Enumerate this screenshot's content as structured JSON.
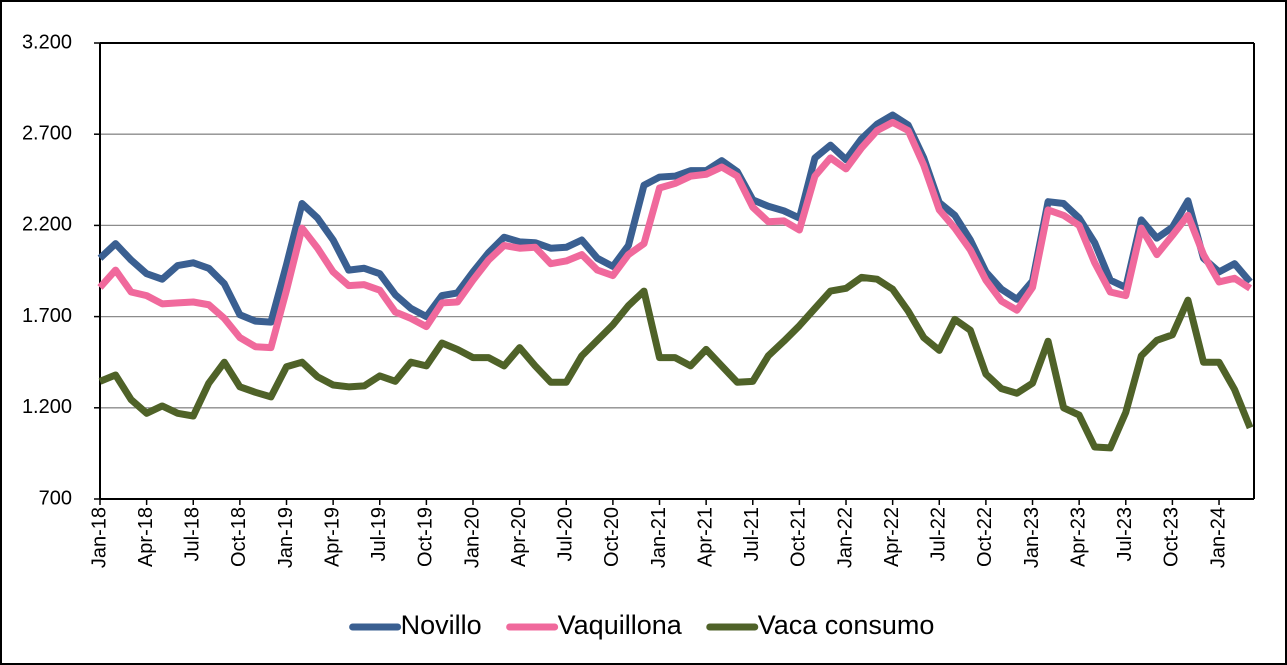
{
  "chart_data": {
    "type": "line",
    "categories": [
      "Jan-18",
      null,
      null,
      "Apr-18",
      null,
      null,
      "Jul-18",
      null,
      null,
      "Oct-18",
      null,
      null,
      "Jan-19",
      null,
      null,
      "Apr-19",
      null,
      null,
      "Jul-19",
      null,
      null,
      "Oct-19",
      null,
      null,
      "Jan-20",
      null,
      null,
      "Apr-20",
      null,
      null,
      "Jul-20",
      null,
      null,
      "Oct-20",
      null,
      null,
      "Jan-21",
      null,
      null,
      "Apr-21",
      null,
      null,
      "Jul-21",
      null,
      null,
      "Oct-21",
      null,
      null,
      "Jan-22",
      null,
      null,
      "Apr-22",
      null,
      null,
      "Jul-22",
      null,
      null,
      "Oct-22",
      null,
      null,
      "Jan-23",
      null,
      null,
      "Apr-23",
      null,
      null,
      "Jul-23",
      null,
      null,
      "Oct-23",
      null,
      null,
      "Jan-24",
      null,
      null
    ],
    "series": [
      {
        "name": "Novillo",
        "color": "#3a5f91",
        "values": [
          2020,
          2100,
          2010,
          1935,
          1905,
          1980,
          1995,
          1965,
          1880,
          1710,
          1675,
          1670,
          1985,
          2320,
          2240,
          2120,
          1955,
          1965,
          1935,
          1820,
          1745,
          1700,
          1815,
          1830,
          1945,
          2050,
          2135,
          2110,
          2105,
          2075,
          2080,
          2120,
          2020,
          1975,
          2090,
          2420,
          2465,
          2470,
          2500,
          2500,
          2555,
          2495,
          2340,
          2305,
          2280,
          2240,
          2570,
          2640,
          2560,
          2675,
          2755,
          2805,
          2750,
          2570,
          2325,
          2255,
          2120,
          1945,
          1850,
          1795,
          1895,
          2330,
          2320,
          2240,
          2105,
          1900,
          1860,
          2230,
          2130,
          2190,
          2335,
          2020,
          1945,
          1990,
          1890
        ]
      },
      {
        "name": "Vaquillona",
        "color": "#f0699c",
        "values": [
          1860,
          1955,
          1835,
          1815,
          1770,
          1775,
          1780,
          1765,
          1690,
          1585,
          1535,
          1530,
          1845,
          2185,
          2075,
          1945,
          1870,
          1875,
          1845,
          1725,
          1690,
          1645,
          1775,
          1780,
          1900,
          2010,
          2090,
          2075,
          2080,
          1990,
          2005,
          2040,
          1955,
          1925,
          2040,
          2100,
          2405,
          2430,
          2470,
          2480,
          2520,
          2470,
          2300,
          2220,
          2225,
          2175,
          2470,
          2570,
          2510,
          2625,
          2720,
          2765,
          2720,
          2530,
          2285,
          2185,
          2065,
          1900,
          1785,
          1735,
          1860,
          2285,
          2255,
          2200,
          1995,
          1835,
          1815,
          2185,
          2040,
          2145,
          2255,
          2040,
          1890,
          1910,
          1855
        ]
      },
      {
        "name": "Vaca consumo",
        "color": "#4f6228",
        "values": [
          1345,
          1380,
          1245,
          1170,
          1210,
          1170,
          1155,
          1335,
          1450,
          1315,
          1285,
          1260,
          1425,
          1450,
          1370,
          1325,
          1315,
          1320,
          1375,
          1345,
          1450,
          1430,
          1555,
          1520,
          1475,
          1475,
          1430,
          1530,
          1430,
          1340,
          1340,
          1485,
          1570,
          1655,
          1760,
          1840,
          1475,
          1475,
          1430,
          1520,
          1430,
          1340,
          1345,
          1485,
          1565,
          1650,
          1745,
          1840,
          1855,
          1915,
          1905,
          1850,
          1730,
          1585,
          1515,
          1685,
          1625,
          1385,
          1305,
          1280,
          1335,
          1565,
          1200,
          1160,
          985,
          980,
          1175,
          1485,
          1570,
          1600,
          1790,
          1450,
          1450,
          1300,
          1090
        ]
      }
    ],
    "ylim": [
      700,
      3200
    ],
    "yticks": [
      700,
      {
        "value": 1200,
        "label": "1.200"
      },
      {
        "value": 1700,
        "label": "1.700"
      },
      {
        "value": 2200,
        "label": "2.200"
      },
      {
        "value": 2700,
        "label": "2.700"
      },
      {
        "value": 3200,
        "label": "3.200"
      }
    ],
    "grid": true,
    "legend": "bottom"
  }
}
